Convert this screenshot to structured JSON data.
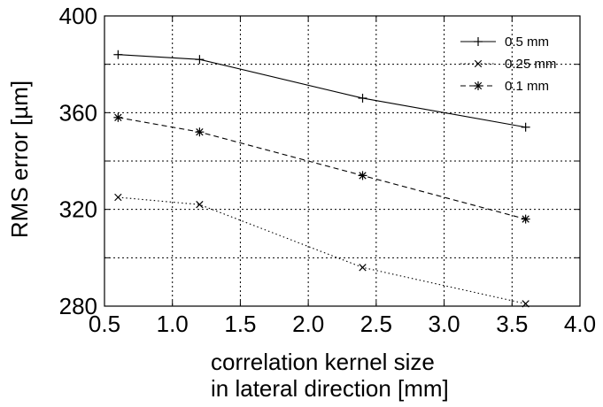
{
  "chart_data": {
    "type": "line",
    "title": "",
    "xlabel_lines": [
      "correlation kernel size",
      "in lateral direction [mm]"
    ],
    "ylabel": "RMS error [µm]",
    "xlim": [
      0.5,
      4.0
    ],
    "ylim": [
      280,
      400
    ],
    "xticks": [
      0.5,
      1.0,
      1.5,
      2.0,
      2.5,
      3.0,
      3.5,
      4.0
    ],
    "xtick_labels": [
      "0.5",
      "1.0",
      "1.5",
      "2.0",
      "2.5",
      "3.0",
      "3.5",
      "4.0"
    ],
    "yticks": [
      280,
      320,
      360,
      400
    ],
    "ytick_labels": [
      "280",
      "320",
      "360",
      "400"
    ],
    "grid": true,
    "legend_position": "top-right",
    "x": [
      0.6,
      1.2,
      2.4,
      3.6
    ],
    "series": [
      {
        "name": "0.5 mm",
        "values": [
          384,
          382,
          366,
          354
        ],
        "line_style": "solid",
        "marker": "plus"
      },
      {
        "name": "0.25 mm",
        "values": [
          325,
          322,
          296,
          281
        ],
        "line_style": "dotted",
        "marker": "x"
      },
      {
        "name": "0.1 mm",
        "values": [
          358,
          352,
          334,
          316
        ],
        "line_style": "dashed",
        "marker": "asterisk"
      }
    ]
  }
}
